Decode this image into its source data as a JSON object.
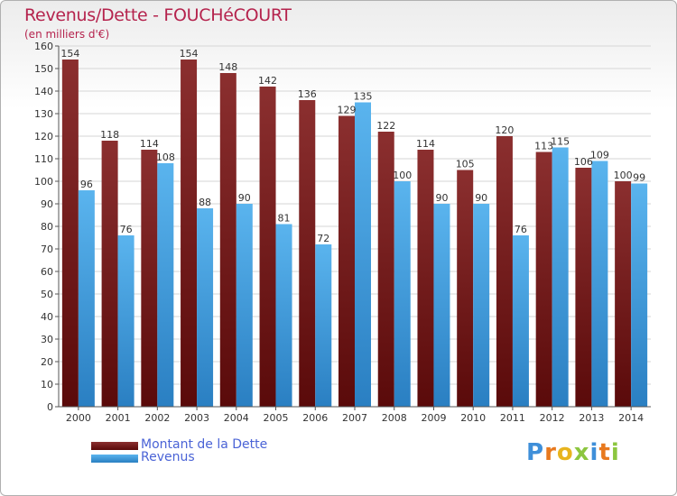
{
  "chart_data": {
    "type": "bar",
    "title": "Revenus/Dette - FOUCHéCOURT",
    "subtitle": "(en milliers d'€)",
    "categories": [
      "2000",
      "2001",
      "2002",
      "2003",
      "2004",
      "2005",
      "2006",
      "2007",
      "2008",
      "2009",
      "2010",
      "2011",
      "2012",
      "2013",
      "2014"
    ],
    "series": [
      {
        "name": "Montant de la Dette",
        "color": "#7a1d1d",
        "values": [
          154,
          118,
          114,
          154,
          148,
          142,
          136,
          129,
          122,
          114,
          105,
          120,
          113,
          106,
          100
        ]
      },
      {
        "name": "Revenus",
        "color": "#3b9be0",
        "values": [
          96,
          76,
          108,
          88,
          90,
          81,
          72,
          135,
          100,
          90,
          90,
          76,
          115,
          109,
          99
        ]
      }
    ],
    "ylim": [
      0,
      160
    ],
    "yticks": [
      0,
      10,
      20,
      30,
      40,
      50,
      60,
      70,
      80,
      90,
      100,
      110,
      120,
      130,
      140,
      150,
      160
    ],
    "grid": true,
    "legend_position": "bottom-left"
  },
  "legend": {
    "debt_label": "Montant de la Dette",
    "revenue_label": "Revenus",
    "debt_color": "#7a1d1d",
    "revenue_color": "#3b9be0"
  },
  "logo": {
    "letters": [
      "P",
      "r",
      "o",
      "x",
      "i",
      "t",
      "i"
    ],
    "colors": [
      "#3f8fd9",
      "#e8791e",
      "#e8b41e",
      "#8cc63f",
      "#3f8fd9",
      "#e8791e",
      "#8cc63f"
    ]
  }
}
